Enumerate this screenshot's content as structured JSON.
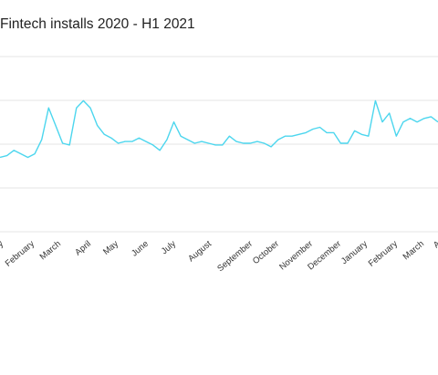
{
  "title": "Fintech installs 2020 - H1 2021",
  "chart_data": {
    "type": "line",
    "title": "Fintech installs 2020 - H1 2021",
    "xlabel": "",
    "ylabel": "",
    "grid": true,
    "line_color": "#4cd6ee",
    "x_tick_labels": [
      "y",
      "February",
      "March",
      "April",
      "May",
      "June",
      "July",
      "August",
      "September",
      "October",
      "November",
      "December",
      "January",
      "February",
      "March",
      "A"
    ],
    "series": [
      {
        "values": [
          42,
          43,
          46,
          44,
          42,
          44,
          52,
          70,
          60,
          50,
          49,
          70,
          74,
          70,
          60,
          55,
          53,
          50,
          51,
          51,
          53,
          51,
          49,
          46,
          52,
          62,
          54,
          52,
          50,
          51,
          50,
          49,
          49,
          54,
          51,
          50,
          50,
          51,
          50,
          48,
          52,
          54,
          54,
          55,
          56,
          58,
          59,
          56,
          56,
          50,
          50,
          57,
          55,
          54,
          74,
          62,
          67,
          54,
          62,
          64,
          62,
          64,
          65,
          62
        ]
      }
    ]
  }
}
